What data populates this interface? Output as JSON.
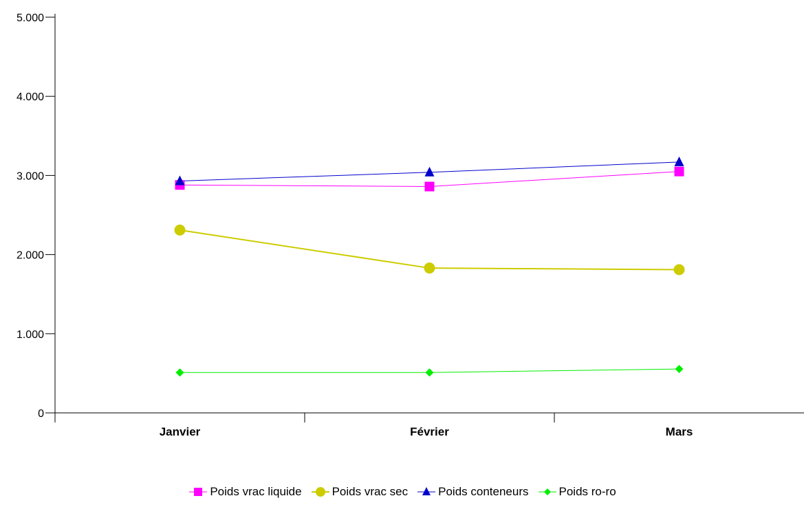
{
  "chart_data": {
    "type": "line",
    "categories": [
      "Janvier",
      "Février",
      "Mars"
    ],
    "ylim": [
      0,
      5000
    ],
    "yticks": [
      "0",
      "1.000",
      "2.000",
      "3.000",
      "4.000",
      "5.000"
    ],
    "ytick_values": [
      0,
      1000,
      2000,
      3000,
      4000,
      5000
    ],
    "grid": false,
    "legend_position": "bottom",
    "series": [
      {
        "name": "Poids vrac liquide",
        "values": [
          2880,
          2860,
          3050
        ],
        "color": "#ff00ff",
        "marker": "square",
        "line_width": 1
      },
      {
        "name": "Poids vrac sec",
        "values": [
          2310,
          1830,
          1810
        ],
        "color": "#cccc00",
        "marker": "circle",
        "line_width": 2
      },
      {
        "name": "Poids conteneurs",
        "values": [
          2930,
          3040,
          3170
        ],
        "color": "#0000cc",
        "marker": "triangle",
        "line_width": 1
      },
      {
        "name": "Poids ro-ro",
        "values": [
          510,
          510,
          555
        ],
        "color": "#00ee00",
        "marker": "diamond",
        "line_width": 1
      }
    ]
  }
}
